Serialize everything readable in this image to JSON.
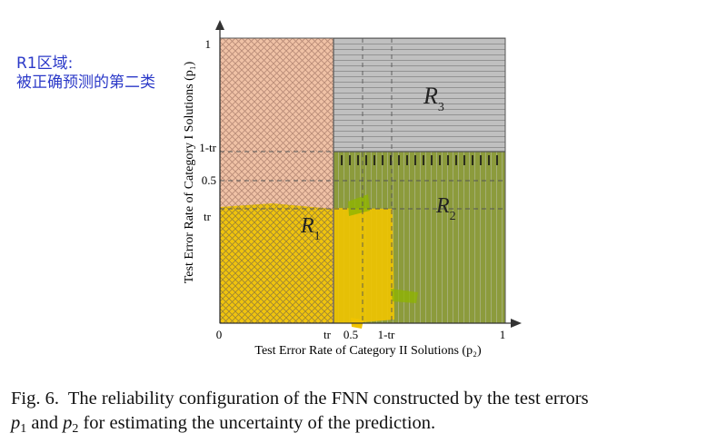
{
  "annotation": {
    "line1": "R1区域:",
    "line2": "被正确预测的第二类"
  },
  "axes": {
    "ylabel": "Test Error Rate of Category I Solutions (p₁)",
    "xlabel": "Test Error Rate of Category II Solutions (p₂)",
    "origin": "0",
    "x_ticks": [
      "tr",
      "0.5",
      "1-tr",
      "1"
    ],
    "y_ticks": [
      "1",
      "1-tr",
      "0.5",
      "tr"
    ]
  },
  "regions": {
    "r1": {
      "letter": "R",
      "sub": "1"
    },
    "r2": {
      "letter": "R",
      "sub": "2"
    },
    "r3": {
      "letter": "R",
      "sub": "3"
    }
  },
  "caption": {
    "prefix": "Fig. 6.",
    "text1": "The reliability configuration of the FNN constructed by the test errors",
    "p1_var": "p",
    "p1_sub": "1",
    "and": "and",
    "p2_var": "p",
    "p2_sub": "2",
    "text2": "for estimating the uncertainty of the prediction."
  },
  "colors": {
    "r1_fill": "#f0c2a6",
    "r1_hatch": "#b98c78",
    "r2_fill": "#8c9b3c",
    "r3_fill": "#c0c0c0",
    "highlight": "#f0c400",
    "annotation": "#2b39c8"
  }
}
